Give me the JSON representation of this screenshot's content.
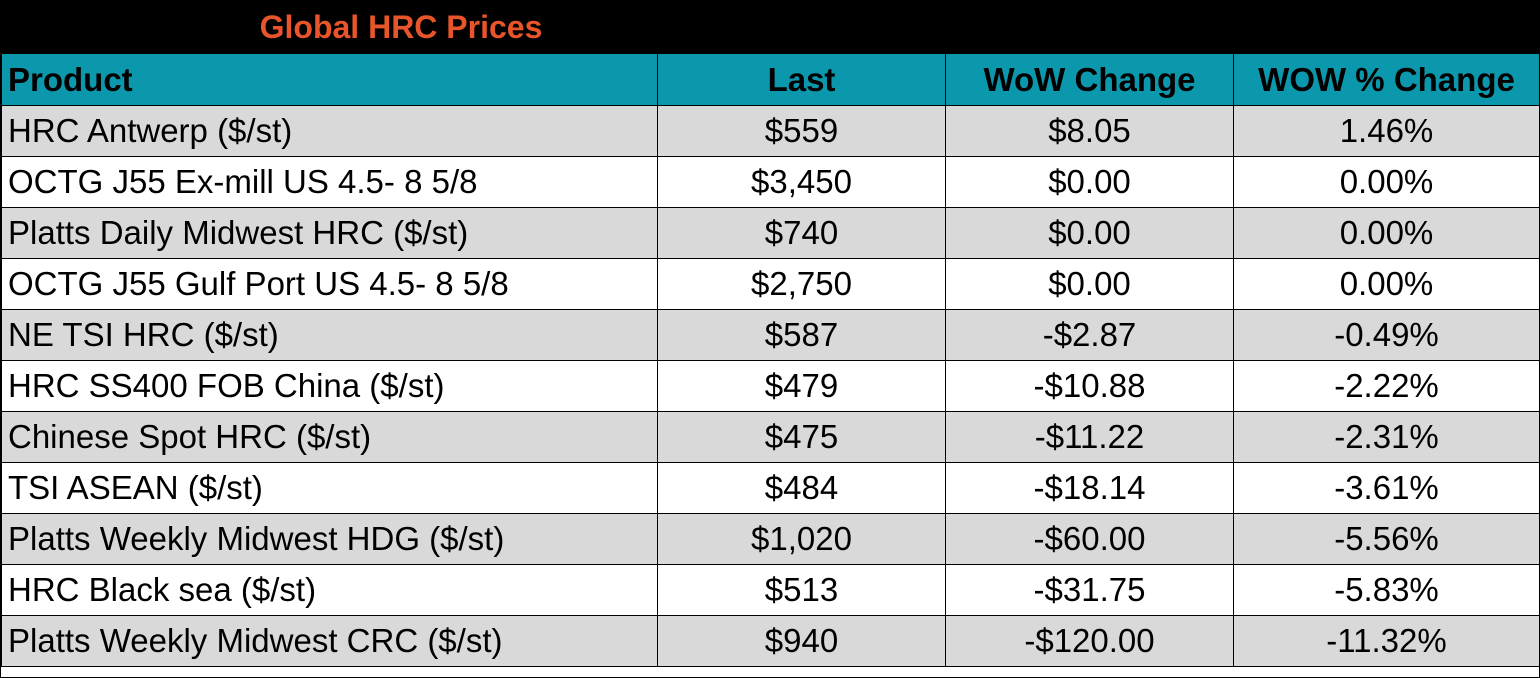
{
  "title": "Global HRC Prices",
  "colors": {
    "title_bg": "#000000",
    "title_text": "#e8552a",
    "header_bg": "#0b98ad",
    "row_shade": "#d9d9d9"
  },
  "headers": [
    "Product",
    "Last",
    "WoW Change",
    "WOW % Change"
  ],
  "rows": [
    {
      "product": "HRC Antwerp ($/st)",
      "last": "$559",
      "wow": "$8.05",
      "pct": "1.46%"
    },
    {
      "product": "OCTG J55 Ex-mill US 4.5- 8 5/8",
      "last": "$3,450",
      "wow": "$0.00",
      "pct": "0.00%"
    },
    {
      "product": "Platts Daily Midwest HRC ($/st)",
      "last": "$740",
      "wow": "$0.00",
      "pct": "0.00%"
    },
    {
      "product": "OCTG J55 Gulf Port US 4.5- 8 5/8",
      "last": "$2,750",
      "wow": "$0.00",
      "pct": "0.00%"
    },
    {
      "product": "NE TSI HRC ($/st)",
      "last": "$587",
      "wow": "-$2.87",
      "pct": "-0.49%"
    },
    {
      "product": "HRC SS400 FOB China ($/st)",
      "last": "$479",
      "wow": "-$10.88",
      "pct": "-2.22%"
    },
    {
      "product": "Chinese Spot HRC ($/st)",
      "last": "$475",
      "wow": "-$11.22",
      "pct": "-2.31%"
    },
    {
      "product": "TSI ASEAN ($/st)",
      "last": "$484",
      "wow": "-$18.14",
      "pct": "-3.61%"
    },
    {
      "product": "Platts Weekly Midwest HDG ($/st)",
      "last": "$1,020",
      "wow": "-$60.00",
      "pct": "-5.56%"
    },
    {
      "product": "HRC Black sea ($/st)",
      "last": "$513",
      "wow": "-$31.75",
      "pct": "-5.83%"
    },
    {
      "product": "Platts Weekly Midwest CRC ($/st)",
      "last": "$940",
      "wow": "-$120.00",
      "pct": "-11.32%"
    }
  ]
}
